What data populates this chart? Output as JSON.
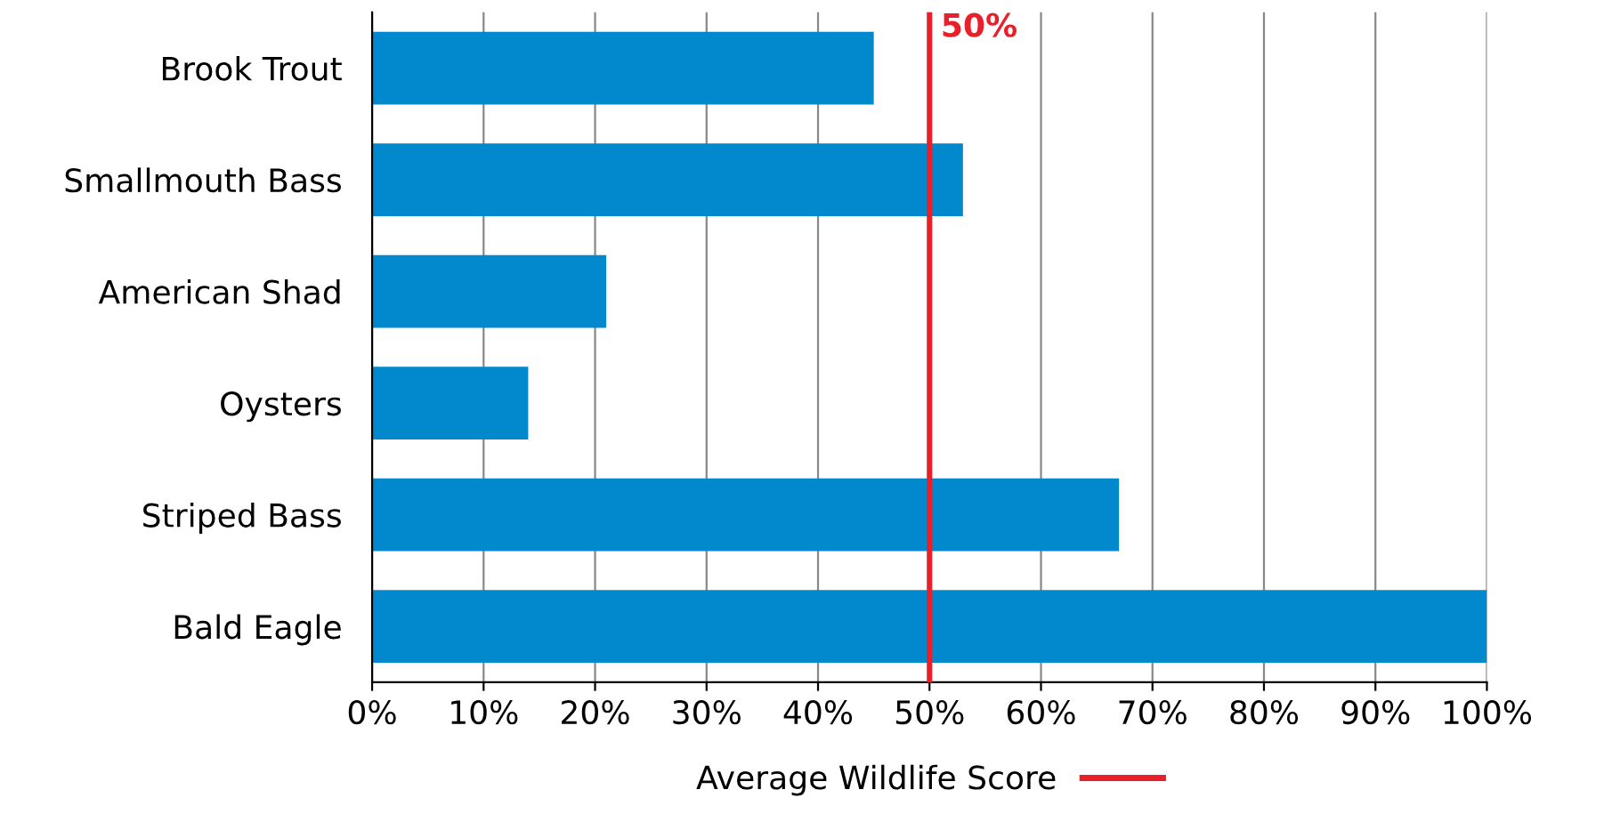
{
  "chart_data": {
    "type": "bar",
    "orientation": "horizontal",
    "categories": [
      "Brook Trout",
      "Smallmouth Bass",
      "American Shad",
      "Oysters",
      "Striped Bass",
      "Bald Eagle"
    ],
    "values": [
      45,
      53,
      21,
      14,
      67,
      100
    ],
    "color": "#0288cc",
    "xlim": [
      0,
      100
    ],
    "xticks": [
      {
        "value": 0,
        "label": "0%"
      },
      {
        "value": 10,
        "label": "10%"
      },
      {
        "value": 20,
        "label": "20%"
      },
      {
        "value": 30,
        "label": "30%"
      },
      {
        "value": 40,
        "label": "40%"
      },
      {
        "value": 50,
        "label": "50%"
      },
      {
        "value": 60,
        "label": "60%"
      },
      {
        "value": 70,
        "label": "70%"
      },
      {
        "value": 80,
        "label": "80%"
      },
      {
        "value": 90,
        "label": "90%"
      },
      {
        "value": 100,
        "label": "100%"
      }
    ],
    "grid": "x",
    "ref_lines": [
      {
        "axis": "x",
        "value": 50,
        "label": "Average Wildlife Score",
        "color": "#e8202a"
      }
    ],
    "annotations": [
      {
        "text": "50%",
        "x": 50
      }
    ],
    "legend": "bottom"
  }
}
